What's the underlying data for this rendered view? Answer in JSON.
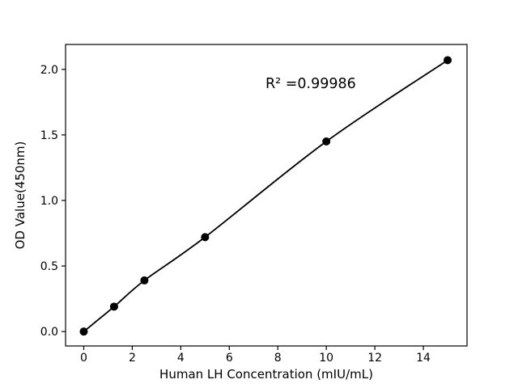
{
  "figure": {
    "background": "#ffffff"
  },
  "chart_data": {
    "type": "line",
    "markers": true,
    "title": "",
    "xlabel": "Human LH Concentration (mIU/mL)",
    "ylabel": "OD Value(450nm)",
    "annotation": "R² =0.99986",
    "x": [
      0,
      1.25,
      2.5,
      5,
      10,
      15
    ],
    "y": [
      0.0,
      0.19,
      0.39,
      0.72,
      1.45,
      2.07
    ],
    "xlim": [
      -0.75,
      15.8
    ],
    "ylim": [
      -0.11,
      2.19
    ],
    "xticks": [
      {
        "value": 0,
        "label": "0"
      },
      {
        "value": 2,
        "label": "2"
      },
      {
        "value": 4,
        "label": "4"
      },
      {
        "value": 6,
        "label": "6"
      },
      {
        "value": 8,
        "label": "8"
      },
      {
        "value": 10,
        "label": "10"
      },
      {
        "value": 12,
        "label": "12"
      },
      {
        "value": 14,
        "label": "14"
      }
    ],
    "yticks": [
      {
        "value": 0.0,
        "label": "0.0"
      },
      {
        "value": 0.5,
        "label": "0.5"
      },
      {
        "value": 1.0,
        "label": "1.0"
      },
      {
        "value": 1.5,
        "label": "1.5"
      },
      {
        "value": 2.0,
        "label": "2.0"
      }
    ],
    "grid": false,
    "legend_position": "none",
    "colors": {
      "line": "#000000",
      "marker": "#000000",
      "axis": "#000000",
      "text": "#000000",
      "background": "#ffffff"
    }
  }
}
